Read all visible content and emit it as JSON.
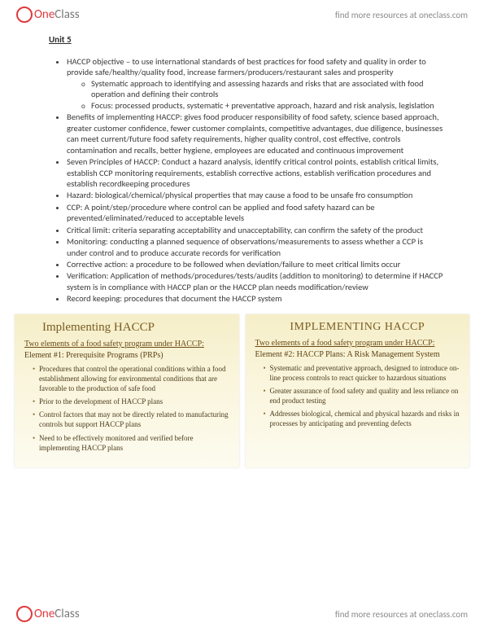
{
  "brand": {
    "name_pre": "One",
    "name_post": "Class",
    "tagline": "find more resources at oneclass.com"
  },
  "title": "Unit 5",
  "bullets": [
    {
      "text": "HACCP objective – to use international standards of best practices for food safety and quality in order to provide safe/healthy/quality food, increase farmers/producers/restaurant sales and prosperity",
      "sub": [
        "Systematic approach to identifying and assessing hazards and risks that are associated with food operation and defining their controls",
        "Focus: processed products, systematic + preventative approach, hazard and risk analysis, legislation"
      ]
    },
    {
      "text": "Benefits of implementing HACCP: gives food producer responsibility of food safety, science based approach, greater customer confidence, fewer customer complaints, competitive advantages, due diligence, businesses can meet current/future food safety requirements, higher quality control, cost effective, controls contamination and recalls, better hygiene, employees are educated and continuous improvement"
    },
    {
      "text": "Seven Principles of HACCP: Conduct a hazard analysis, identify critical control points, establish critical limits, establish CCP monitoring requirements, establish corrective actions, establish verification procedures and establish recordkeeping procedures"
    },
    {
      "text": "Hazard: biological/chemical/physical properties that may cause a food to be unsafe fro consumption"
    },
    {
      "text": "CCP: A point/step/procedure where control can be applied and food safety hazard can be prevented/eliminated/reduced to acceptable levels"
    },
    {
      "text": "Critical limit: criteria separating acceptability and unacceptability, can confirm the safety of the product"
    },
    {
      "text": "Monitoring: conducting a planned sequence of observations/measurements to assess whether a CCP is under control and to produce accurate records for verification"
    },
    {
      "text": "Corrective action: a procedure to be followed when deviation/failure to meet critical limits occur"
    },
    {
      "text": "Verification: Application of methods/procedures/tests/audits (addition to monitoring) to determine if HACCP system is in compliance with HACCP plan or the HACCP plan needs modification/review"
    },
    {
      "text": "Record keeping: procedures that document the HACCP system"
    }
  ],
  "slide_left": {
    "title": "Implementing HACCP",
    "subtitle": "Two elements of a food safety program under HACCP:",
    "element": "Element #1: Prerequisite Programs (PRPs)",
    "points": [
      "Procedures that control the operational conditions within a food establishment allowing for environmental conditions that are favorable to the production of safe food",
      "Prior to the development of HACCP plans",
      "Control factors that may not be directly related to manufacturing controls but support HACCP plans",
      "Need to be effectively monitored and verified before implementing HACCP plans"
    ]
  },
  "slide_right": {
    "title": "IMPLEMENTING HACCP",
    "subtitle": "Two elements of a food safety program under HACCP:",
    "element": "Element #2: HACCP Plans: A Risk Management System",
    "points": [
      "Systematic and preventative approach, designed to introduce on-line process controls to react quicker to hazardous situations",
      "Greater assurance of food safety and quality and less reliance on end product testing",
      "Addresses biological, chemical and physical hazards and risks in processes by anticipating and preventing defects"
    ]
  }
}
